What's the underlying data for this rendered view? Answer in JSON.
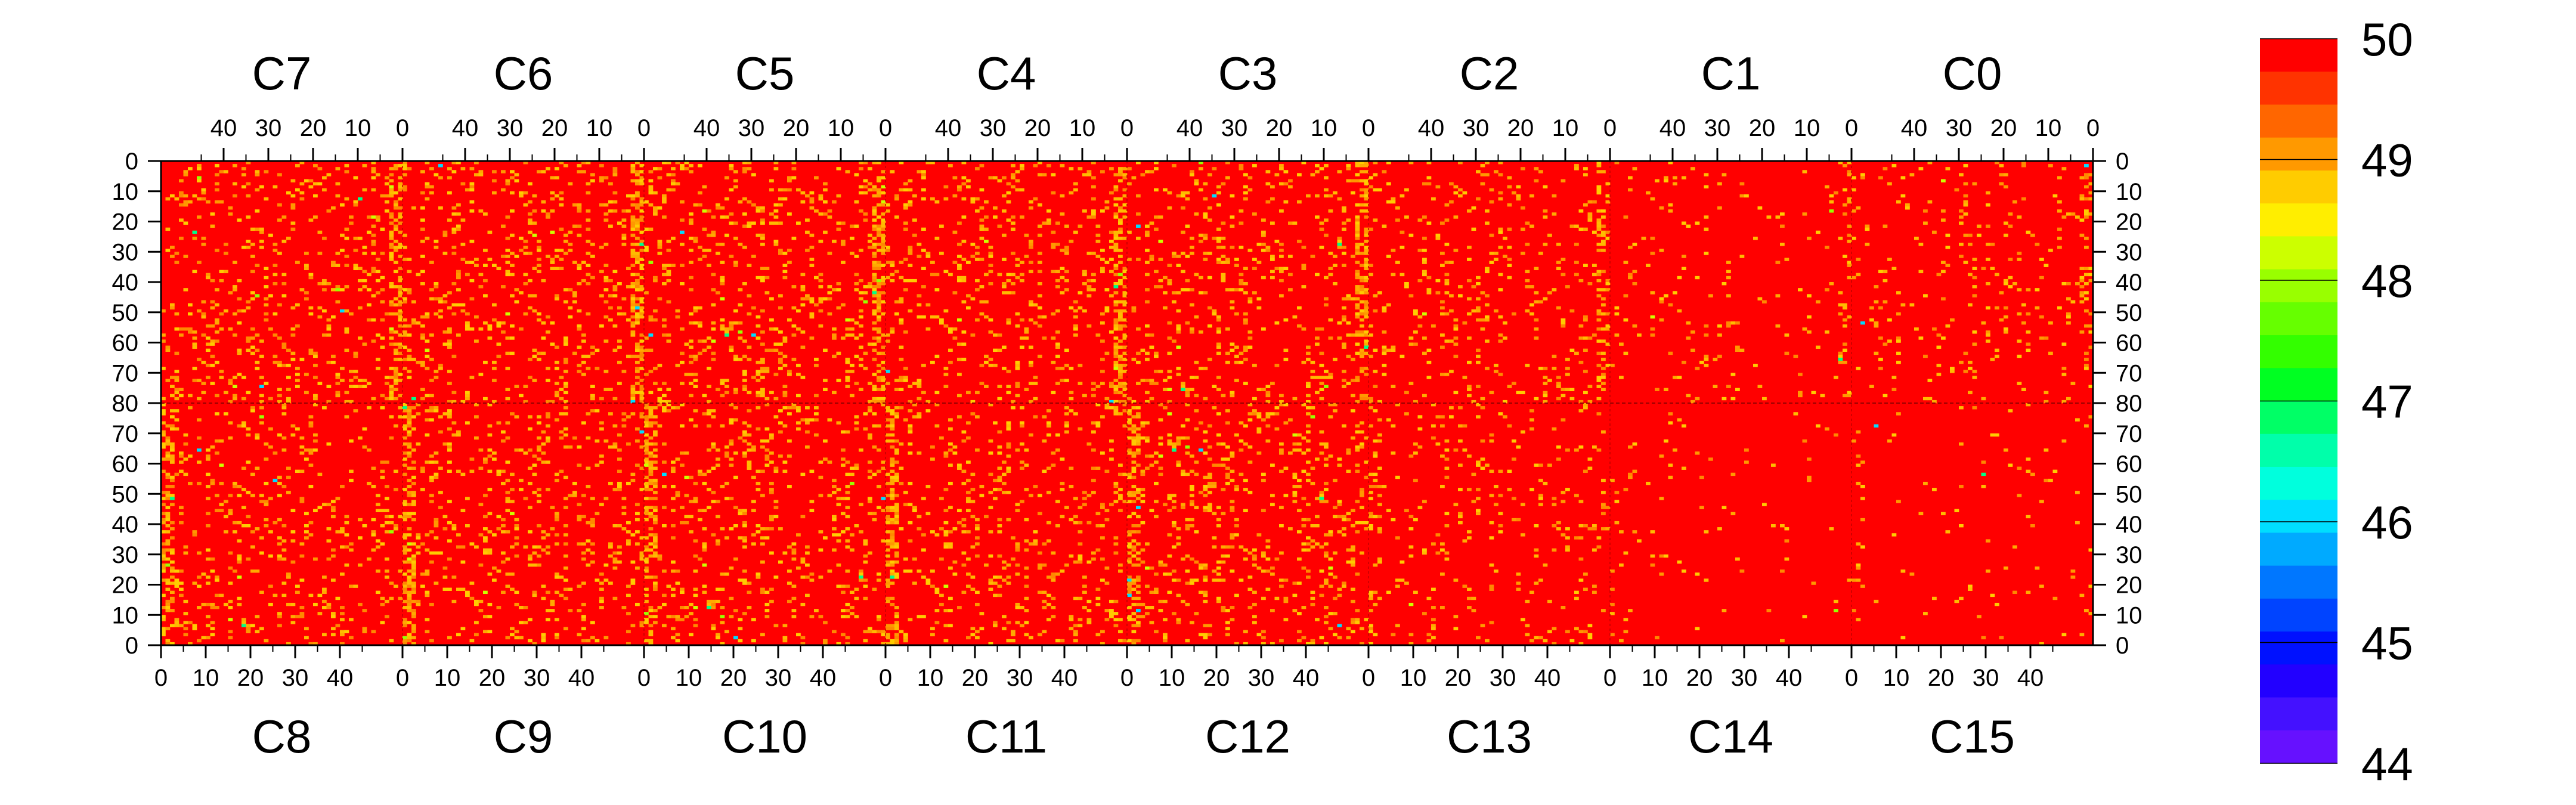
{
  "chart_data": {
    "type": "heatmap",
    "title": "",
    "top_chip_labels": [
      "C7",
      "C6",
      "C5",
      "C4",
      "C3",
      "C2",
      "C1",
      "C0"
    ],
    "bottom_chip_labels": [
      "C8",
      "C9",
      "C10",
      "C11",
      "C12",
      "C13",
      "C14",
      "C15"
    ],
    "top_x_ticks": [
      "40",
      "30",
      "20",
      "10",
      "0"
    ],
    "bottom_x_ticks": [
      "0",
      "10",
      "20",
      "30",
      "40"
    ],
    "top_y_ticks": [
      "0",
      "10",
      "20",
      "30",
      "40",
      "50",
      "60",
      "70",
      "80"
    ],
    "bottom_y_ticks": [
      "70",
      "60",
      "50",
      "40",
      "30",
      "20",
      "10",
      "0"
    ],
    "columns_per_chip": 54,
    "rows_per_half": 80,
    "colorbar": {
      "min": 44,
      "max": 50,
      "tick_labels": [
        "50",
        "49",
        "48",
        "47",
        "46",
        "45",
        "44"
      ],
      "colors": [
        "#ff0000",
        "#ff3300",
        "#ff6600",
        "#ff9900",
        "#ffcc00",
        "#ffee00",
        "#ccff00",
        "#99ff00",
        "#66ff00",
        "#33ff00",
        "#00ff22",
        "#00ff66",
        "#00ffaa",
        "#00ffdd",
        "#00ddff",
        "#00aaff",
        "#0077ff",
        "#0044ff",
        "#0011ff",
        "#2200ff",
        "#4411ff",
        "#6611ff"
      ]
    },
    "dominant_value": 50,
    "chip_noise_density": {
      "C7": 0.12,
      "C6": 0.14,
      "C5": 0.14,
      "C4": 0.13,
      "C3": 0.12,
      "C2": 0.09,
      "C1": 0.04,
      "C0": 0.06,
      "C8": 0.11,
      "C9": 0.13,
      "C10": 0.13,
      "C11": 0.12,
      "C12": 0.14,
      "C13": 0.06,
      "C14": 0.02,
      "C15": 0.02
    }
  }
}
